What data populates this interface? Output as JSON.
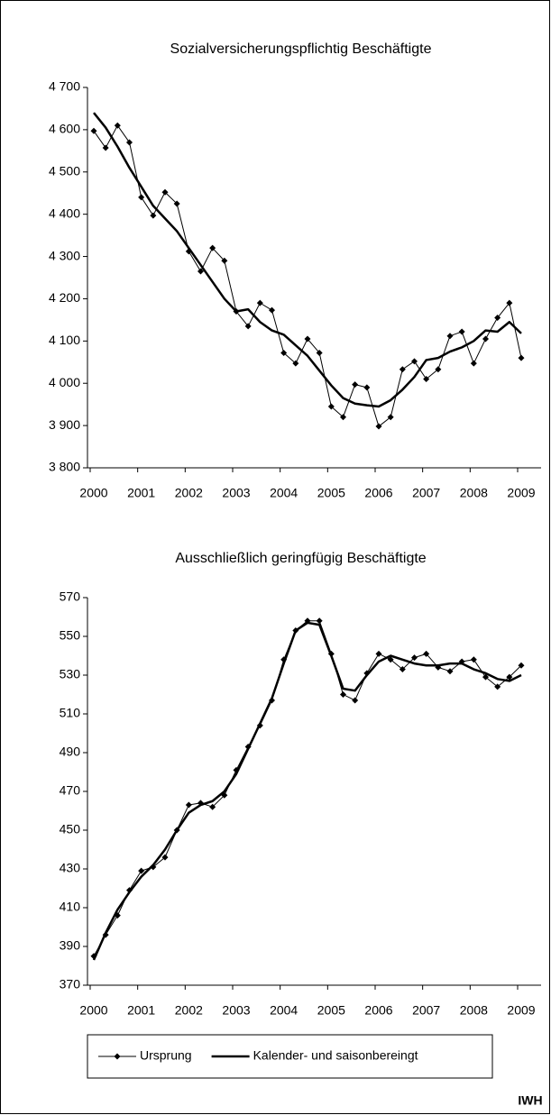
{
  "chart_data": [
    {
      "type": "line",
      "title": "Sozialversicherungspflichtig Beschäftigte",
      "categories": [
        "2000",
        null,
        null,
        null,
        "2001",
        null,
        null,
        null,
        "2002",
        null,
        null,
        null,
        "2003",
        null,
        null,
        null,
        "2004",
        null,
        null,
        null,
        "2005",
        null,
        null,
        null,
        "2006",
        null,
        null,
        null,
        "2007",
        null,
        null,
        null,
        "2008",
        null,
        null,
        null,
        "2009"
      ],
      "series": [
        {
          "name": "Ursprung",
          "color": "#000000",
          "marker": "diamond",
          "width": 1,
          "values": [
            4597,
            4557,
            4610,
            4570,
            4440,
            4397,
            4452,
            4425,
            4312,
            4265,
            4320,
            4290,
            4170,
            4135,
            4190,
            4173,
            4072,
            4047,
            4105,
            4072,
            3945,
            3920,
            3997,
            3990,
            3898,
            3920,
            4033,
            4052,
            4010,
            4033,
            4112,
            4122,
            4047,
            4105,
            4155,
            4190,
            4060
          ]
        },
        {
          "name": "Kalender- und saisonbereingt",
          "color": "#000000",
          "width": 2.5,
          "values": [
            4640,
            4605,
            4560,
            4510,
            4465,
            4420,
            4390,
            4360,
            4320,
            4280,
            4240,
            4200,
            4170,
            4175,
            4145,
            4125,
            4115,
            4090,
            4065,
            4030,
            3995,
            3965,
            3952,
            3948,
            3945,
            3960,
            3985,
            4015,
            4055,
            4060,
            4075,
            4085,
            4100,
            4125,
            4122,
            4145,
            4118
          ]
        }
      ],
      "ylim": [
        3800,
        4700
      ],
      "yticks": [
        {
          "value": 3800,
          "label": "3 800"
        },
        {
          "value": 3900,
          "label": "3 900"
        },
        {
          "value": 4000,
          "label": "4 000"
        },
        {
          "value": 4100,
          "label": "4 100"
        },
        {
          "value": 4200,
          "label": "4 200"
        },
        {
          "value": 4300,
          "label": "4 300"
        },
        {
          "value": 4400,
          "label": "4 400"
        },
        {
          "value": 4500,
          "label": "4 500"
        },
        {
          "value": 4600,
          "label": "4 600"
        },
        {
          "value": 4700,
          "label": "4 700"
        }
      ],
      "grid": false,
      "legend": "bottom"
    },
    {
      "type": "line",
      "title": "Ausschließlich geringfügig Beschäftigte",
      "categories": [
        "2000",
        null,
        null,
        null,
        "2001",
        null,
        null,
        null,
        "2002",
        null,
        null,
        null,
        "2003",
        null,
        null,
        null,
        "2004",
        null,
        null,
        null,
        "2005",
        null,
        null,
        null,
        "2006",
        null,
        null,
        null,
        "2007",
        null,
        null,
        null,
        "2008",
        null,
        null,
        null,
        "2009"
      ],
      "series": [
        {
          "color": "#000000",
          "marker": "diamond",
          "width": 1,
          "values": [
            385,
            396,
            406,
            419,
            429,
            431,
            436,
            450,
            463,
            464,
            462,
            468,
            481,
            493,
            504,
            517,
            538,
            553,
            558,
            558,
            541,
            520,
            517,
            531,
            541,
            538,
            533,
            539,
            541,
            534,
            532,
            537,
            538,
            529,
            524,
            529,
            535
          ]
        },
        {
          "color": "#000000",
          "width": 2.5,
          "values": [
            383,
            397,
            409,
            418,
            426,
            432,
            440,
            450,
            459,
            463,
            465,
            470,
            479,
            492,
            505,
            518,
            536,
            553,
            557,
            556,
            540,
            523,
            522,
            530,
            537,
            540,
            538,
            536,
            535,
            535,
            536,
            536,
            533,
            531,
            528,
            527,
            530
          ]
        }
      ],
      "ylim": [
        370,
        570
      ],
      "yticks": [
        370,
        390,
        410,
        430,
        450,
        470,
        490,
        510,
        530,
        550,
        570
      ],
      "grid": false
    }
  ],
  "source": "IWH"
}
